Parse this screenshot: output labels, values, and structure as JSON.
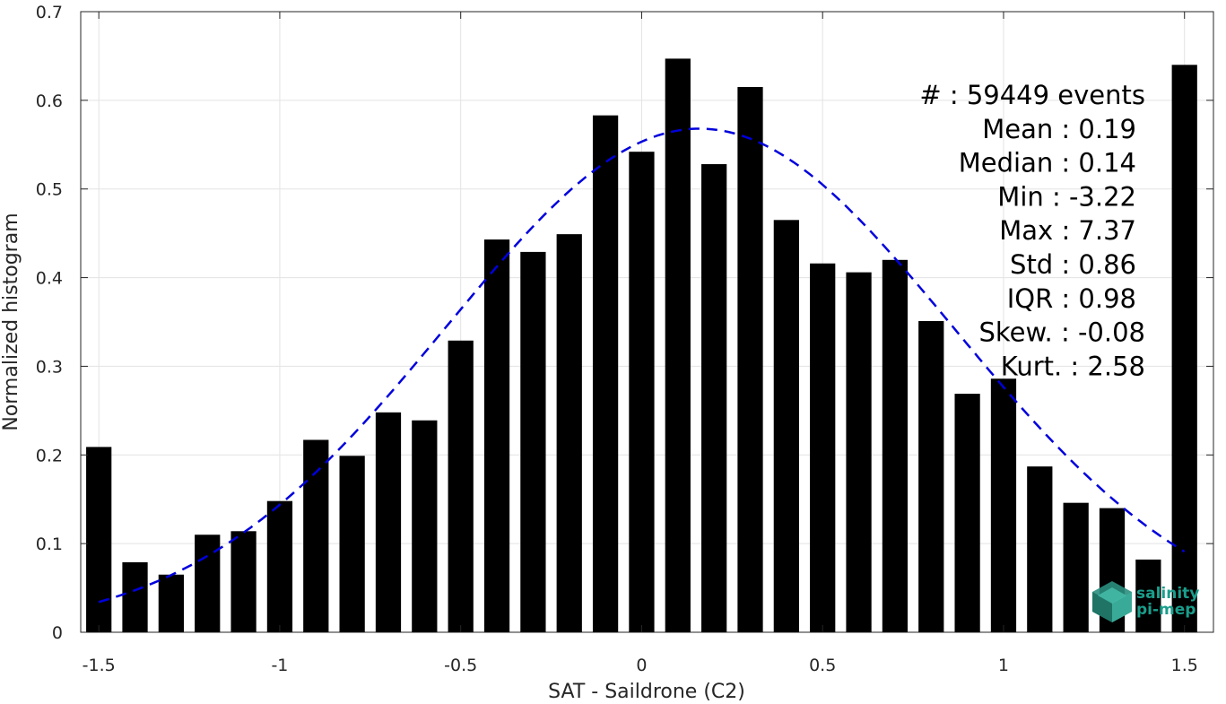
{
  "chart_data": {
    "type": "bar",
    "xlabel": "SAT - Saildrone (C2)",
    "ylabel": "Normalized histogram",
    "xlim": [
      -1.55,
      1.58
    ],
    "ylim": [
      0,
      0.7
    ],
    "x_ticks": [
      -1.5,
      -1,
      -0.5,
      0,
      0.5,
      1,
      1.5
    ],
    "x_tick_labels": [
      "-1.5",
      "-1",
      "-0.5",
      "0",
      "0.5",
      "1",
      "1.5"
    ],
    "y_ticks": [
      0,
      0.1,
      0.2,
      0.3,
      0.4,
      0.5,
      0.6,
      0.7
    ],
    "y_tick_labels": [
      "0",
      "0.1",
      "0.2",
      "0.3",
      "0.4",
      "0.5",
      "0.6",
      "0.7"
    ],
    "grid": true,
    "bar_color": "#000000",
    "x": [
      -1.5,
      -1.4,
      -1.3,
      -1.2,
      -1.1,
      -1.0,
      -0.9,
      -0.8,
      -0.7,
      -0.6,
      -0.5,
      -0.4,
      -0.3,
      -0.2,
      -0.1,
      0.0,
      0.1,
      0.2,
      0.3,
      0.4,
      0.5,
      0.6,
      0.7,
      0.8,
      0.9,
      1.0,
      1.1,
      1.2,
      1.3,
      1.4,
      1.5
    ],
    "values": [
      0.209,
      0.079,
      0.065,
      0.11,
      0.114,
      0.148,
      0.217,
      0.199,
      0.248,
      0.239,
      0.329,
      0.443,
      0.429,
      0.449,
      0.583,
      0.542,
      0.647,
      0.528,
      0.615,
      0.465,
      0.416,
      0.406,
      0.42,
      0.351,
      0.269,
      0.286,
      0.187,
      0.146,
      0.14,
      0.082,
      0.64
    ],
    "fit": {
      "type": "gaussian",
      "mean": 0.16,
      "std": 0.7,
      "peak": 0.568,
      "x_range": [
        -1.5,
        1.5
      ],
      "color": "#0000dd",
      "style": "dashed"
    },
    "stats": [
      "#  : 59449 events",
      "Mean : 0.19",
      "Median : 0.14",
      "Min : -3.22",
      "Max : 7.37",
      "Std : 0.86",
      "IQR : 0.98",
      "Skew. : -0.08",
      "Kurt. : 2.58"
    ]
  },
  "logo": {
    "line1": "salinity",
    "line2": "pi-mep",
    "color": "#1a9e8c"
  }
}
